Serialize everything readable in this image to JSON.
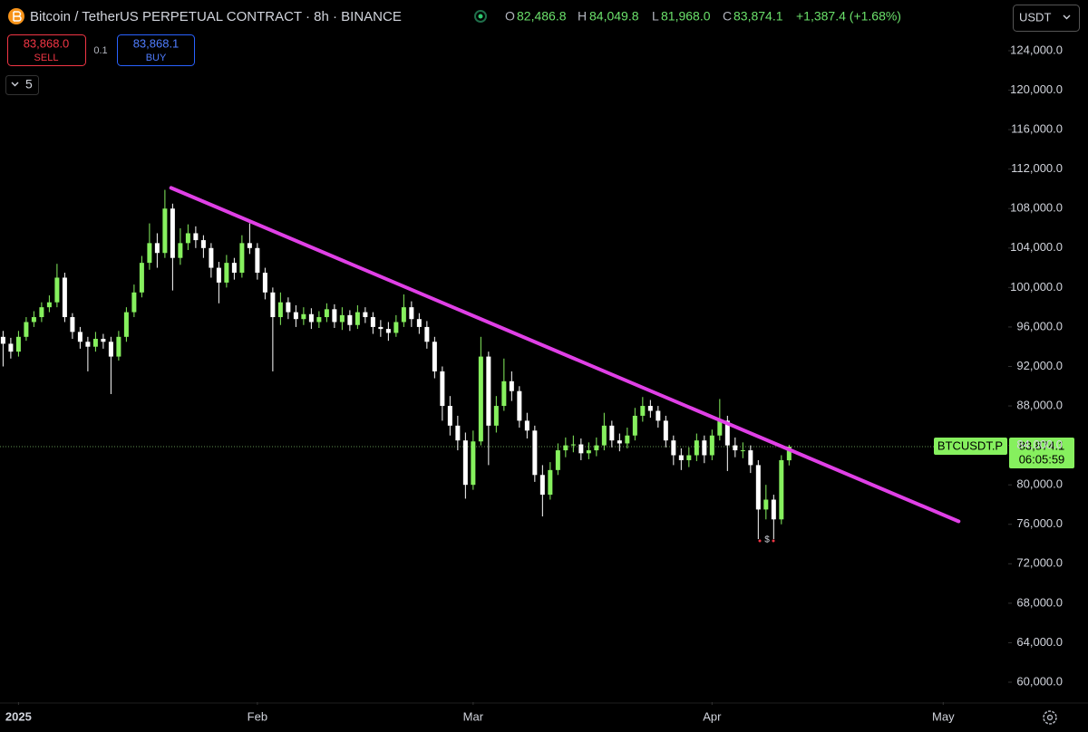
{
  "ui": {
    "title": "Bitcoin / TetherUS PERPETUAL CONTRACT · 8h · BINANCE",
    "ohlc": [
      {
        "key": "O",
        "value": "82,486.8"
      },
      {
        "key": "H",
        "value": "84,049.8"
      },
      {
        "key": "L",
        "value": "81,968.0"
      },
      {
        "key": "C",
        "value": "83,874.1"
      }
    ],
    "change": "+1,387.4 (+1.68%)",
    "sell": {
      "price": "83,868.0",
      "label": "SELL"
    },
    "spread": "0.1",
    "buy": {
      "price": "83,868.1",
      "label": "BUY"
    },
    "interval_count": "5",
    "currency": "USDT",
    "price_tag": {
      "symbol": "BTCUSDT.P",
      "price": "83,874.1",
      "countdown": "06:05:59"
    },
    "marker": "$"
  },
  "chart_data": {
    "type": "candlestick",
    "up_color": "#86f05e",
    "down_color": "#ffffff",
    "grid": false,
    "y_axis_side": "right",
    "x": [
      -2,
      -1,
      0,
      1,
      2,
      3,
      4,
      5,
      6,
      7,
      8,
      9,
      10,
      11,
      12,
      13,
      14,
      15,
      16,
      17,
      18,
      19,
      20,
      21,
      22,
      23,
      24,
      25,
      26,
      27,
      28,
      29,
      30,
      31,
      32,
      33,
      34,
      35,
      36,
      37,
      38,
      39,
      40,
      41,
      42,
      43,
      44,
      45,
      46,
      47,
      48,
      49,
      50,
      51,
      52,
      53,
      54,
      55,
      56,
      57,
      58,
      59,
      60,
      61,
      62,
      63,
      64,
      65,
      66,
      67,
      68,
      69,
      70,
      71,
      72,
      73,
      74,
      75,
      76,
      77,
      78,
      79,
      80,
      81,
      82,
      83,
      84,
      85,
      86,
      87,
      88,
      89,
      90,
      91,
      92,
      93,
      94,
      95,
      96,
      97,
      98,
      99,
      100
    ],
    "open": [
      95000,
      94300,
      93500,
      95000,
      96500,
      97000,
      98000,
      98500,
      101000,
      97000,
      95500,
      94500,
      94000,
      94800,
      94500,
      93000,
      95000,
      97500,
      99500,
      102500,
      104500,
      103500,
      108000,
      103000,
      104500,
      105500,
      104800,
      104000,
      102000,
      100500,
      102500,
      101500,
      104500,
      104000,
      101500,
      99500,
      97000,
      98500,
      97500,
      96800,
      97300,
      96500,
      97000,
      97800,
      96500,
      97200,
      96200,
      97500,
      97000,
      96000,
      95800,
      95400,
      96500,
      98000,
      96800,
      96000,
      94500,
      91500,
      88000,
      86000,
      84500,
      80000,
      84400,
      93000,
      86000,
      88000,
      90500,
      89500,
      86500,
      85500,
      81000,
      79000,
      81500,
      83500,
      84000,
      84100,
      83200,
      83500,
      84000,
      86000,
      84500,
      84200,
      85000,
      87000,
      88000,
      87500,
      86500,
      84500,
      83000,
      82500,
      83000,
      84500,
      83000,
      85000,
      86500,
      84000,
      83500,
      83500,
      82000,
      77500,
      78500,
      76500,
      82486.8
    ],
    "high": [
      95600,
      94900,
      95600,
      97000,
      97600,
      98500,
      99200,
      102400,
      101500,
      97400,
      96000,
      95000,
      95500,
      95300,
      95000,
      95600,
      98000,
      100300,
      103200,
      106500,
      105500,
      109900,
      108500,
      106000,
      106400,
      106200,
      105300,
      104500,
      102600,
      103300,
      103000,
      105300,
      106500,
      104500,
      102000,
      100000,
      99500,
      99000,
      98200,
      98000,
      97900,
      97600,
      98400,
      98300,
      98000,
      97700,
      98200,
      98000,
      97500,
      96700,
      96500,
      97200,
      99300,
      98600,
      97400,
      96600,
      95000,
      92000,
      89000,
      87000,
      85300,
      85500,
      95000,
      93500,
      89000,
      92800,
      91500,
      90000,
      87300,
      86000,
      82000,
      82300,
      84200,
      84800,
      85000,
      84700,
      84300,
      84800,
      87300,
      86500,
      85200,
      85800,
      87800,
      88900,
      88600,
      88000,
      87000,
      85000,
      83700,
      83800,
      85200,
      85000,
      85600,
      88700,
      87000,
      84800,
      84300,
      84000,
      82500,
      80000,
      79000,
      83000,
      84049.8
    ],
    "low": [
      92000,
      92800,
      93000,
      94600,
      96000,
      96500,
      97500,
      98000,
      96500,
      94800,
      93800,
      91500,
      93500,
      93800,
      89200,
      92600,
      94500,
      97000,
      99000,
      101800,
      102000,
      103000,
      99700,
      102300,
      103800,
      104000,
      103000,
      101000,
      98400,
      100000,
      100800,
      101000,
      103400,
      100800,
      98800,
      91500,
      96200,
      96800,
      96000,
      96200,
      95800,
      95900,
      96500,
      95900,
      95700,
      95600,
      95800,
      96400,
      95300,
      95000,
      94600,
      95000,
      96000,
      96000,
      95300,
      93800,
      90800,
      86500,
      85000,
      83500,
      78600,
      79500,
      84000,
      82000,
      85300,
      87500,
      88500,
      85800,
      84700,
      80300,
      76800,
      78500,
      81000,
      82800,
      83300,
      82500,
      82600,
      82900,
      83500,
      83800,
      83400,
      83700,
      84500,
      86400,
      86800,
      85800,
      83800,
      82000,
      81500,
      81800,
      82400,
      82200,
      82500,
      84500,
      81400,
      82800,
      82700,
      81200,
      74500,
      76500,
      74500,
      76000,
      81968.0
    ],
    "close": [
      94300,
      93500,
      95000,
      96500,
      97000,
      98000,
      98500,
      101000,
      97000,
      95500,
      94500,
      94000,
      94800,
      94500,
      93000,
      95000,
      97500,
      99500,
      102500,
      104500,
      103500,
      108000,
      103000,
      104500,
      105500,
      104800,
      104000,
      102000,
      100500,
      102500,
      101500,
      104500,
      104000,
      101500,
      99500,
      97000,
      98500,
      97500,
      96800,
      97300,
      96500,
      97000,
      97800,
      96500,
      97200,
      96200,
      97500,
      97000,
      96000,
      95800,
      95400,
      96500,
      98000,
      96800,
      96000,
      94500,
      91500,
      88000,
      86000,
      84500,
      80000,
      84400,
      93000,
      86000,
      88000,
      90500,
      89500,
      86500,
      85500,
      81000,
      79000,
      81500,
      83500,
      84000,
      84100,
      83200,
      83500,
      84000,
      86000,
      84500,
      84200,
      85000,
      87000,
      88000,
      87500,
      86500,
      84500,
      83000,
      82500,
      83000,
      84500,
      83000,
      85000,
      86500,
      84000,
      83500,
      83500,
      82000,
      77500,
      78500,
      76500,
      82500,
      83874.1
    ],
    "trendline": {
      "color": "#e040e6",
      "x": [
        19.8,
        122
      ],
      "y": [
        110100,
        76300
      ]
    },
    "xlim": [
      -2.4,
      128.2
    ],
    "xticks": [
      {
        "value": 0,
        "label": "2025"
      },
      {
        "value": 31,
        "label": "Feb"
      },
      {
        "value": 59,
        "label": "Mar"
      },
      {
        "value": 90,
        "label": "Apr"
      },
      {
        "value": 120,
        "label": "May"
      }
    ],
    "ylim": [
      57980,
      129140
    ],
    "yticks": [
      {
        "value": 60000,
        "label": "60,000.0"
      },
      {
        "value": 64000,
        "label": "64,000.0"
      },
      {
        "value": 68000,
        "label": "68,000.0"
      },
      {
        "value": 72000,
        "label": "72,000.0"
      },
      {
        "value": 76000,
        "label": "76,000.0"
      },
      {
        "value": 80000,
        "label": "80,000.0"
      },
      {
        "value": 84000,
        "label": "84,000.0"
      },
      {
        "value": 88000,
        "label": "88,000.0"
      },
      {
        "value": 92000,
        "label": "92,000.0"
      },
      {
        "value": 96000,
        "label": "96,000.0"
      },
      {
        "value": 100000,
        "label": "100,000.0"
      },
      {
        "value": 104000,
        "label": "104,000.0"
      },
      {
        "value": 108000,
        "label": "108,000.0"
      },
      {
        "value": 112000,
        "label": "112,000.0"
      },
      {
        "value": 116000,
        "label": "116,000.0"
      },
      {
        "value": 120000,
        "label": "120,000.0"
      },
      {
        "value": 124000,
        "label": "124,000.0"
      }
    ]
  }
}
